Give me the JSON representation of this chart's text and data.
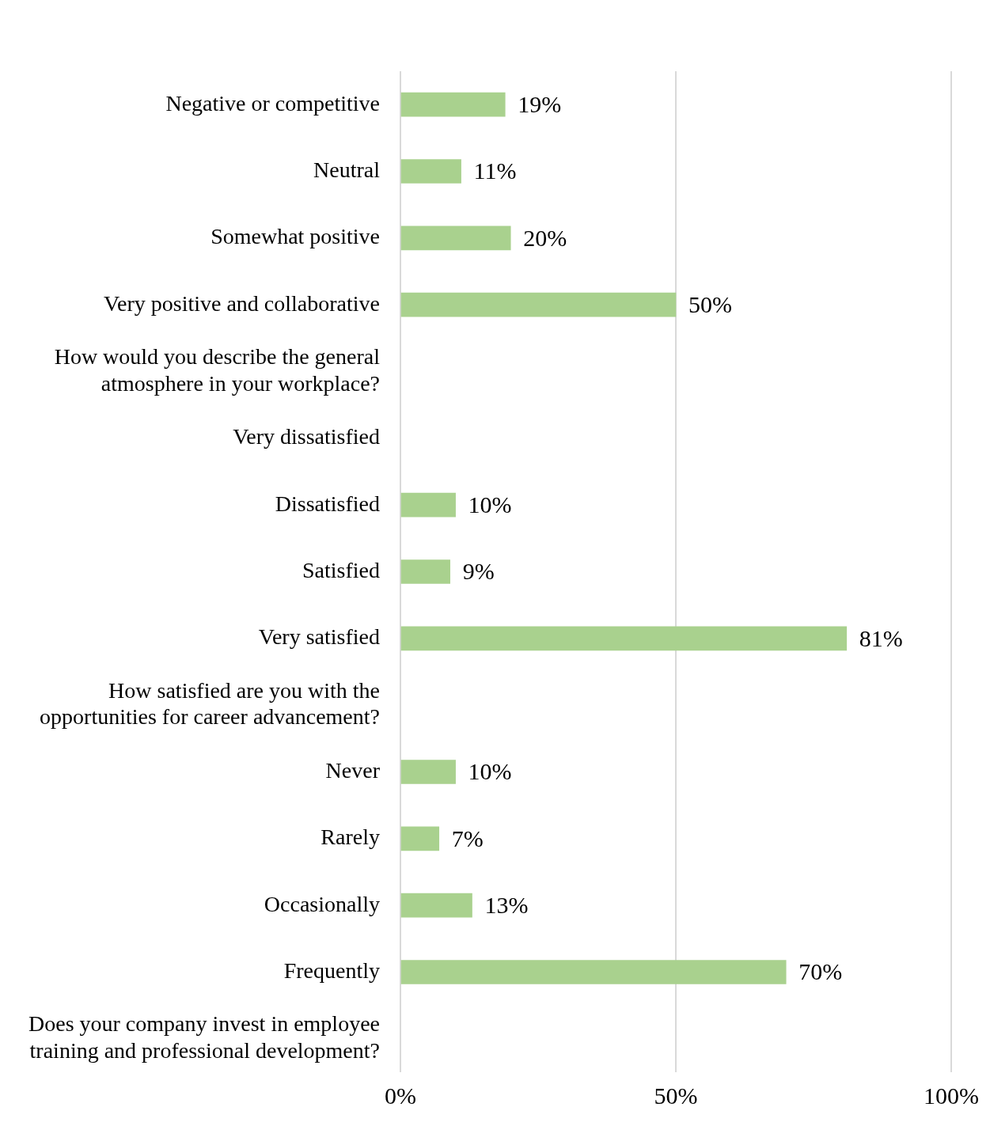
{
  "chart_data": {
    "type": "bar",
    "orientation": "horizontal",
    "categories": [
      "Negative or competitive",
      "Neutral",
      "Somewhat positive",
      "Very positive and collaborative",
      "How would you describe the general\natmosphere in your workplace?",
      "Very dissatisfied",
      "Dissatisfied",
      "Satisfied",
      "Very satisfied",
      "How satisfied are you with the\nopportunities for career advancement?",
      "Never",
      "Rarely",
      "Occasionally",
      "Frequently",
      "Does your company invest in employee\ntraining and professional development?"
    ],
    "values": [
      19,
      11,
      20,
      50,
      null,
      null,
      10,
      9,
      81,
      null,
      10,
      7,
      13,
      70,
      null
    ],
    "value_labels": [
      "19%",
      "11%",
      "20%",
      "50%",
      null,
      null,
      "10%",
      "9%",
      "81%",
      null,
      "10%",
      "7%",
      "13%",
      "70%",
      null
    ],
    "color": "#a9d18e",
    "xlim": [
      0,
      100
    ],
    "xticks": [
      {
        "value": 0,
        "label": "0%"
      },
      {
        "value": 50,
        "label": "50%"
      },
      {
        "value": 100,
        "label": "100%"
      }
    ],
    "grid": "x",
    "legend": false
  }
}
